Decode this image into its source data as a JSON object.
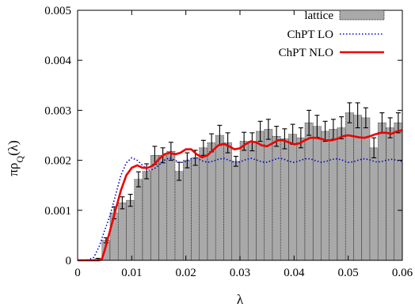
{
  "chart_data": {
    "type": "bar",
    "xlabel": "λ",
    "ylabel_main": "πρ",
    "ylabel_sub": "Q",
    "ylabel_tail": "(λ)",
    "xlim": [
      0,
      0.06
    ],
    "ylim": [
      0,
      0.005
    ],
    "xticks": [
      "0",
      "0.01",
      "0.02",
      "0.03",
      "0.04",
      "0.05",
      "0.06"
    ],
    "yticks": [
      "0",
      "0.001",
      "0.002",
      "0.003",
      "0.004",
      "0.005"
    ],
    "grid": false,
    "legend_position": "top-right",
    "bar_width": 0.0015,
    "legend": [
      {
        "label": "lattice",
        "style": "bar",
        "color": "#a9a9a9"
      },
      {
        "label": "ChPT LO",
        "style": "dotted",
        "color": "#0000cc"
      },
      {
        "label": "ChPT NLO",
        "style": "solid",
        "color": "#ee0000"
      }
    ],
    "lattice": {
      "x": [
        0.00075,
        0.00225,
        0.00375,
        0.00525,
        0.00675,
        0.00825,
        0.00975,
        0.01125,
        0.01275,
        0.01425,
        0.01575,
        0.01725,
        0.01875,
        0.02025,
        0.02175,
        0.02325,
        0.02475,
        0.02625,
        0.02775,
        0.02925,
        0.03075,
        0.03225,
        0.03375,
        0.03525,
        0.03675,
        0.03825,
        0.03975,
        0.04125,
        0.04275,
        0.04425,
        0.04575,
        0.04725,
        0.04875,
        0.05025,
        0.05175,
        0.05325,
        0.05475,
        0.05625,
        0.05775,
        0.05925
      ],
      "y": [
        0.0,
        0.0,
        2e-05,
        0.0004,
        0.00095,
        0.00115,
        0.0012,
        0.00162,
        0.00178,
        0.0021,
        0.0021,
        0.00218,
        0.00178,
        0.002,
        0.00205,
        0.00225,
        0.00235,
        0.0025,
        0.00235,
        0.00198,
        0.00238,
        0.00237,
        0.00258,
        0.00262,
        0.00248,
        0.00243,
        0.00252,
        0.00245,
        0.00275,
        0.00268,
        0.00258,
        0.00262,
        0.00265,
        0.00295,
        0.0029,
        0.00285,
        0.00225,
        0.00275,
        0.00265,
        0.00275
      ],
      "err": [
        0.0,
        0.0,
        2e-05,
        5e-05,
        0.00012,
        0.00012,
        0.00012,
        0.00015,
        0.00015,
        0.00018,
        0.00015,
        0.00018,
        0.00018,
        0.00015,
        0.00015,
        0.00015,
        0.00018,
        0.0002,
        0.0002,
        0.0001,
        0.00018,
        0.00018,
        0.0002,
        0.0002,
        0.0002,
        0.0002,
        0.0002,
        0.0002,
        0.00025,
        0.00022,
        0.0002,
        0.0002,
        0.00022,
        0.0002,
        0.00025,
        0.0002,
        0.0002,
        0.0002,
        0.0002,
        0.0002
      ]
    },
    "chpt_lo": {
      "x": [
        0.0,
        0.001,
        0.002,
        0.003,
        0.004,
        0.005,
        0.006,
        0.007,
        0.008,
        0.009,
        0.01,
        0.011,
        0.012,
        0.013,
        0.014,
        0.015,
        0.016,
        0.017,
        0.018,
        0.019,
        0.02,
        0.021,
        0.022,
        0.023,
        0.024,
        0.025,
        0.026,
        0.027,
        0.028,
        0.029,
        0.03,
        0.031,
        0.032,
        0.033,
        0.034,
        0.035,
        0.036,
        0.037,
        0.038,
        0.039,
        0.04,
        0.041,
        0.042,
        0.043,
        0.044,
        0.045,
        0.046,
        0.047,
        0.048,
        0.049,
        0.05,
        0.051,
        0.052,
        0.053,
        0.054,
        0.055,
        0.056,
        0.057,
        0.058,
        0.059,
        0.06
      ],
      "y": [
        0.0,
        0.0,
        1e-05,
        6e-05,
        0.00028,
        0.0006,
        0.0009,
        0.0013,
        0.0017,
        0.00195,
        0.00205,
        0.002,
        0.0019,
        0.0018,
        0.00182,
        0.0019,
        0.002,
        0.00205,
        0.002,
        0.00195,
        0.00198,
        0.00203,
        0.00205,
        0.00199,
        0.00196,
        0.00198,
        0.00202,
        0.00204,
        0.002,
        0.00196,
        0.00197,
        0.00201,
        0.00204,
        0.00201,
        0.00197,
        0.00196,
        0.002,
        0.00204,
        0.00203,
        0.00198,
        0.00196,
        0.00199,
        0.00203,
        0.00203,
        0.00199,
        0.00196,
        0.00198,
        0.00202,
        0.00203,
        0.002,
        0.00196,
        0.00197,
        0.00201,
        0.00203,
        0.00201,
        0.00197,
        0.00197,
        0.002,
        0.00202,
        0.002,
        0.00198
      ]
    },
    "chpt_nlo": {
      "x": [
        0.0,
        0.001,
        0.002,
        0.003,
        0.004,
        0.0045,
        0.005,
        0.006,
        0.007,
        0.008,
        0.009,
        0.01,
        0.011,
        0.012,
        0.013,
        0.014,
        0.015,
        0.016,
        0.017,
        0.018,
        0.019,
        0.02,
        0.021,
        0.022,
        0.023,
        0.024,
        0.025,
        0.026,
        0.027,
        0.028,
        0.029,
        0.03,
        0.031,
        0.032,
        0.033,
        0.034,
        0.035,
        0.036,
        0.037,
        0.038,
        0.039,
        0.04,
        0.041,
        0.042,
        0.043,
        0.044,
        0.045,
        0.046,
        0.047,
        0.048,
        0.049,
        0.05,
        0.051,
        0.052,
        0.053,
        0.054,
        0.055,
        0.056,
        0.057,
        0.058,
        0.059,
        0.06
      ],
      "y": [
        0.0,
        0.0,
        0.0,
        0.0,
        0.0,
        3e-05,
        0.0002,
        0.0006,
        0.001,
        0.0014,
        0.0017,
        0.00185,
        0.0019,
        0.00185,
        0.00185,
        0.0019,
        0.00202,
        0.00212,
        0.00215,
        0.00212,
        0.00215,
        0.00222,
        0.00222,
        0.00212,
        0.00206,
        0.0021,
        0.0022,
        0.0023,
        0.00233,
        0.00228,
        0.00222,
        0.00224,
        0.00232,
        0.00238,
        0.00236,
        0.0023,
        0.00228,
        0.00234,
        0.0024,
        0.0024,
        0.00236,
        0.00232,
        0.00234,
        0.0024,
        0.00245,
        0.00245,
        0.00243,
        0.0024,
        0.0024,
        0.00243,
        0.00248,
        0.0025,
        0.00248,
        0.00246,
        0.00245,
        0.00248,
        0.00252,
        0.00255,
        0.00255,
        0.00253,
        0.00258,
        0.0026
      ]
    }
  }
}
